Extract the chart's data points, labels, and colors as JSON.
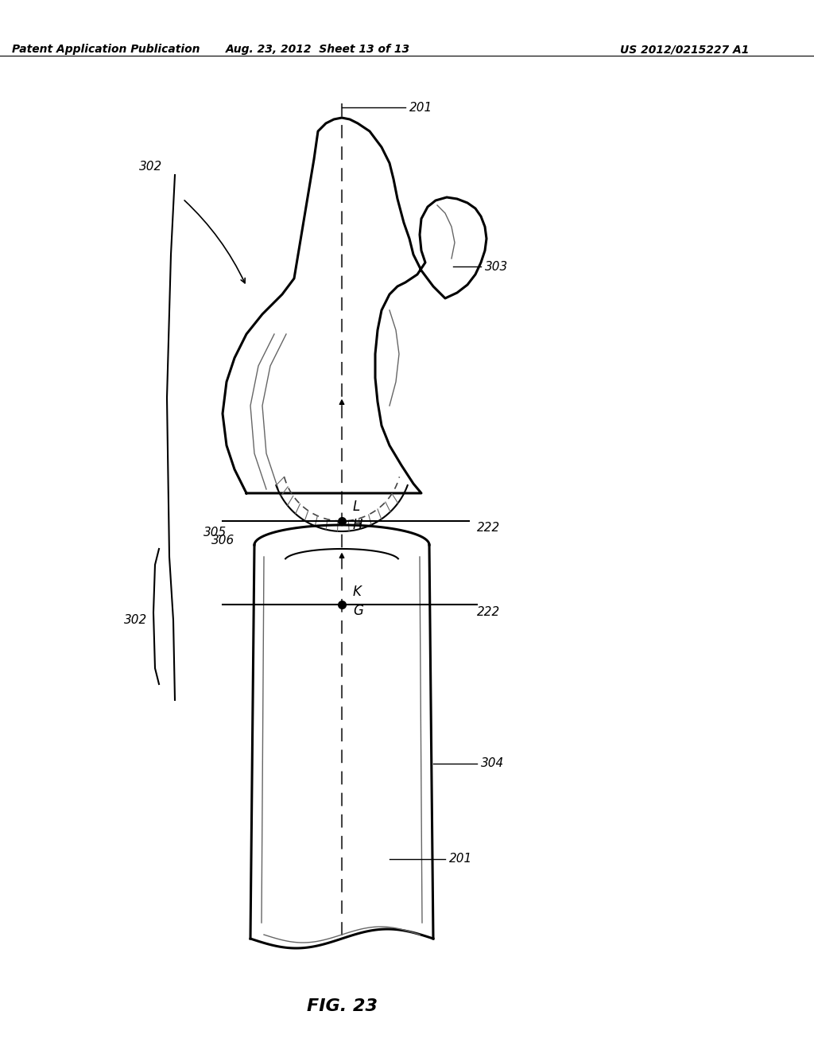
{
  "header_left": "Patent Application Publication",
  "header_mid": "Aug. 23, 2012  Sheet 13 of 13",
  "header_right": "US 2012/0215227 A1",
  "figure_label": "FIG. 23",
  "bg_color": "#ffffff",
  "line_color": "#000000",
  "dashed_color": "#555555",
  "hatch_color": "#888888",
  "label_201_top": "201",
  "label_201_bot": "201",
  "label_302": "302",
  "label_302b": "302",
  "label_303": "303",
  "label_305": "305",
  "label_306": "306",
  "label_222a": "222",
  "label_222b": "222",
  "label_H": "H",
  "label_L": "L",
  "label_G": "G",
  "label_K": "K",
  "label_304": "304"
}
